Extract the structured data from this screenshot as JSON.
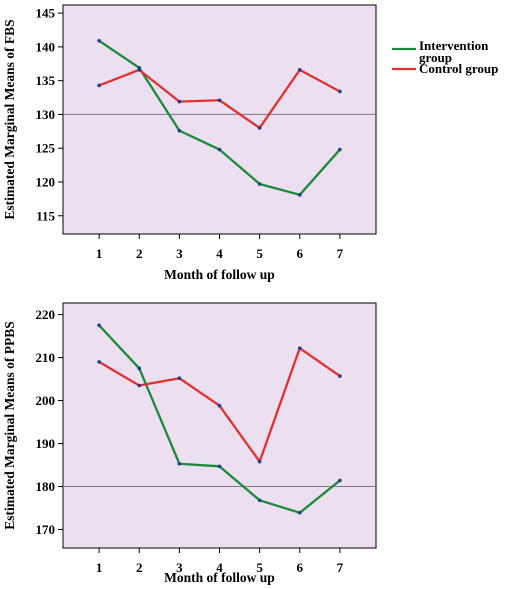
{
  "chart_data": [
    {
      "type": "line",
      "xlabel": "Month of follow up",
      "ylabel": "Estimated Marginal Means of FBS",
      "x": [
        1,
        2,
        3,
        4,
        5,
        6,
        7
      ],
      "xlim": [
        0.1,
        7.9
      ],
      "ylim": [
        112.3,
        146.2
      ],
      "yticks": [
        115,
        120,
        125,
        130,
        135,
        140,
        145
      ],
      "reference_line": 130,
      "series": [
        {
          "name": "Intervention group",
          "color": "#1a8a3a",
          "values": [
            140.9,
            136.9,
            127.6,
            124.8,
            119.7,
            118.1,
            124.8
          ]
        },
        {
          "name": "Control group",
          "color": "#e03030",
          "values": [
            134.3,
            136.6,
            131.9,
            132.1,
            128.0,
            136.6,
            133.4
          ]
        }
      ],
      "legend_position": "right",
      "plot_background": "#ecdff0",
      "grid": false
    },
    {
      "type": "line",
      "xlabel": "Month of follow up",
      "ylabel": "Estimated Marginal Means of PPBS",
      "x": [
        1,
        2,
        3,
        4,
        5,
        6,
        7
      ],
      "xlim": [
        0.1,
        7.9
      ],
      "ylim": [
        165.7,
        222.7
      ],
      "yticks": [
        170,
        180,
        190,
        200,
        210,
        220
      ],
      "reference_line": 180,
      "series": [
        {
          "name": "Intervention group",
          "color": "#1a8a3a",
          "values": [
            217.5,
            207.5,
            185.3,
            184.7,
            176.8,
            173.9,
            181.4
          ]
        },
        {
          "name": "Control group",
          "color": "#e03030",
          "values": [
            209.0,
            203.5,
            205.2,
            198.8,
            185.8,
            212.2,
            205.7
          ]
        }
      ],
      "grid": false,
      "plot_background": "#ecdff0"
    }
  ]
}
